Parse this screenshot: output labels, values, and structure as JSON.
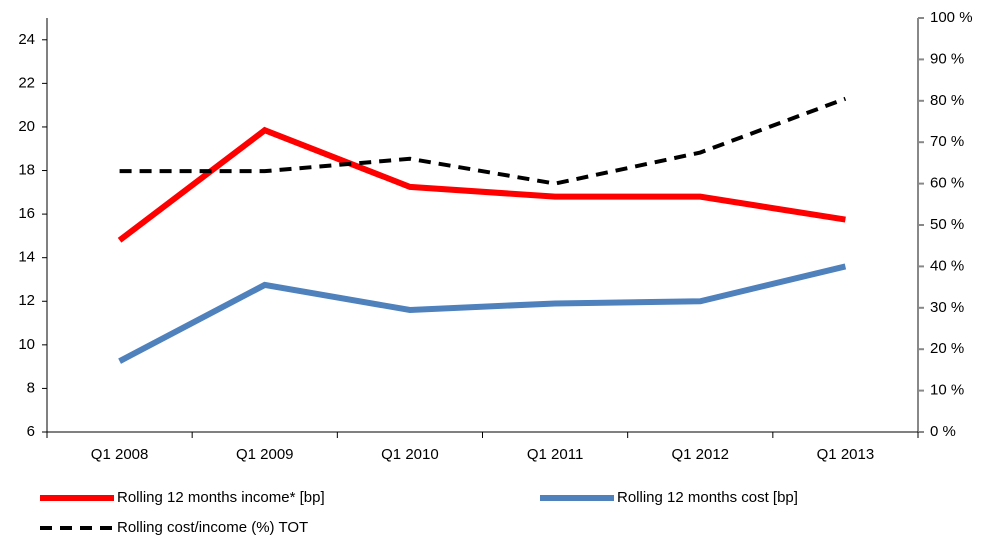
{
  "chart_data": {
    "type": "line",
    "categories": [
      "Q1 2008",
      "Q1 2009",
      "Q1 2010",
      "Q1 2011",
      "Q1 2012",
      "Q1 2013"
    ],
    "series": [
      {
        "name": "Rolling 12 months income* [bp]",
        "color": "#ff0000",
        "dash": "solid",
        "values": [
          14.8,
          19.85,
          17.25,
          16.8,
          16.8,
          15.75
        ]
      },
      {
        "name": "Rolling 12 months cost [bp]",
        "color": "#4f81bd",
        "dash": "solid",
        "values": [
          9.25,
          12.75,
          11.6,
          11.9,
          12.0,
          13.6
        ]
      },
      {
        "name": "Rolling cost/income (%) TOT",
        "color": "#000000",
        "dash": "dashed",
        "axis": "y2",
        "values": [
          63,
          63,
          66,
          60,
          67.5,
          80.5
        ]
      }
    ],
    "ylim": [
      6,
      25
    ],
    "yticks": [
      6,
      8,
      10,
      12,
      14,
      16,
      18,
      20,
      22,
      24
    ],
    "y2lim": [
      0,
      100
    ],
    "y2ticks": [
      {
        "value": 0,
        "label": "0 %"
      },
      {
        "value": 10,
        "label": "10 %"
      },
      {
        "value": 20,
        "label": "20 %"
      },
      {
        "value": 30,
        "label": "30 %"
      },
      {
        "value": 40,
        "label": "40 %"
      },
      {
        "value": 50,
        "label": "50 %"
      },
      {
        "value": 60,
        "label": "60 %"
      },
      {
        "value": 70,
        "label": "70 %"
      },
      {
        "value": 80,
        "label": "80 %"
      },
      {
        "value": 90,
        "label": "90 %"
      },
      {
        "value": 100,
        "label": "100 %"
      }
    ],
    "legend": "bottom"
  }
}
